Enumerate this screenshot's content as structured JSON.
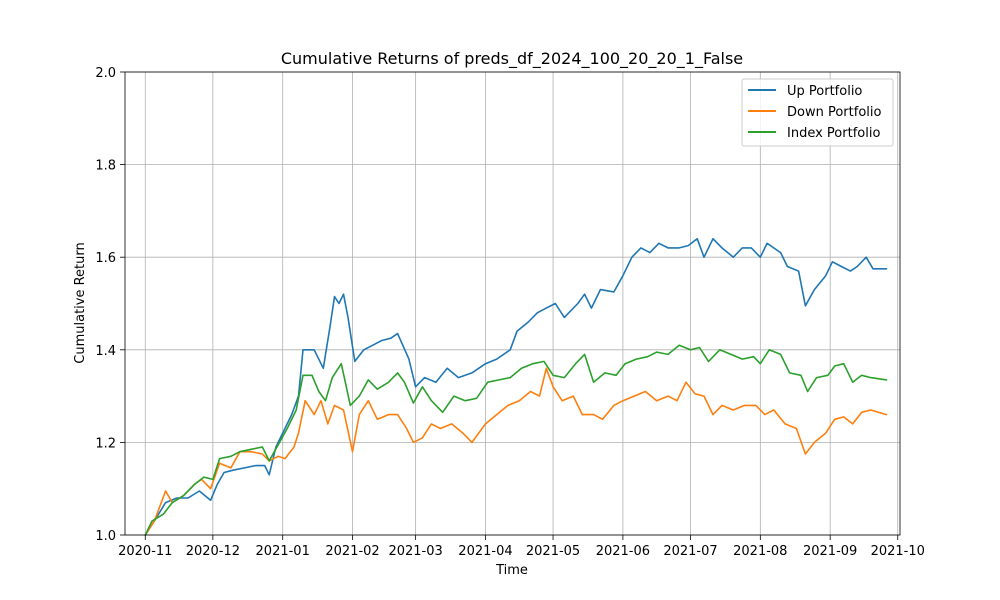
{
  "chart_data": {
    "type": "line",
    "title": "Cumulative Returns of preds_df_2024_100_20_20_1_False",
    "xlabel": "Time",
    "ylabel": "Cumulative Return",
    "ylim": [
      1.0,
      2.0
    ],
    "xlim": [
      "2020-10-23",
      "2021-10-02"
    ],
    "grid": true,
    "legend_position": "top-right",
    "x_ticks": [
      "2020-11",
      "2020-12",
      "2021-01",
      "2021-02",
      "2021-03",
      "2021-04",
      "2021-05",
      "2021-06",
      "2021-07",
      "2021-08",
      "2021-09",
      "2021-10"
    ],
    "y_ticks": [
      "1.0",
      "1.2",
      "1.4",
      "1.6",
      "1.8",
      "2.0"
    ],
    "series": [
      {
        "name": "Up Portfolio",
        "color": "#1f77b4",
        "points": [
          [
            "2020-11-01",
            1.0
          ],
          [
            "2020-11-05",
            1.03
          ],
          [
            "2020-11-10",
            1.07
          ],
          [
            "2020-11-15",
            1.08
          ],
          [
            "2020-11-20",
            1.08
          ],
          [
            "2020-11-25",
            1.095
          ],
          [
            "2020-11-30",
            1.075
          ],
          [
            "2020-12-03",
            1.11
          ],
          [
            "2020-12-06",
            1.135
          ],
          [
            "2020-12-10",
            1.14
          ],
          [
            "2020-12-15",
            1.145
          ],
          [
            "2020-12-20",
            1.15
          ],
          [
            "2020-12-24",
            1.15
          ],
          [
            "2020-12-26",
            1.13
          ],
          [
            "2020-12-29",
            1.19
          ],
          [
            "2021-01-01",
            1.22
          ],
          [
            "2021-01-05",
            1.26
          ],
          [
            "2021-01-08",
            1.3
          ],
          [
            "2021-01-10",
            1.4
          ],
          [
            "2021-01-15",
            1.4
          ],
          [
            "2021-01-19",
            1.36
          ],
          [
            "2021-01-22",
            1.45
          ],
          [
            "2021-01-24",
            1.515
          ],
          [
            "2021-01-26",
            1.5
          ],
          [
            "2021-01-28",
            1.52
          ],
          [
            "2021-01-30",
            1.47
          ],
          [
            "2021-02-02",
            1.375
          ],
          [
            "2021-02-06",
            1.4
          ],
          [
            "2021-02-10",
            1.41
          ],
          [
            "2021-02-14",
            1.42
          ],
          [
            "2021-02-18",
            1.425
          ],
          [
            "2021-02-21",
            1.435
          ],
          [
            "2021-02-26",
            1.38
          ],
          [
            "2021-03-01",
            1.32
          ],
          [
            "2021-03-05",
            1.34
          ],
          [
            "2021-03-10",
            1.33
          ],
          [
            "2021-03-15",
            1.36
          ],
          [
            "2021-03-20",
            1.34
          ],
          [
            "2021-03-26",
            1.35
          ],
          [
            "2021-04-01",
            1.37
          ],
          [
            "2021-04-06",
            1.38
          ],
          [
            "2021-04-12",
            1.4
          ],
          [
            "2021-04-15",
            1.44
          ],
          [
            "2021-04-20",
            1.46
          ],
          [
            "2021-04-24",
            1.48
          ],
          [
            "2021-04-28",
            1.49
          ],
          [
            "2021-05-02",
            1.5
          ],
          [
            "2021-05-06",
            1.47
          ],
          [
            "2021-05-12",
            1.5
          ],
          [
            "2021-05-15",
            1.52
          ],
          [
            "2021-05-18",
            1.49
          ],
          [
            "2021-05-22",
            1.53
          ],
          [
            "2021-05-28",
            1.525
          ],
          [
            "2021-06-01",
            1.56
          ],
          [
            "2021-06-05",
            1.6
          ],
          [
            "2021-06-09",
            1.62
          ],
          [
            "2021-06-13",
            1.61
          ],
          [
            "2021-06-17",
            1.63
          ],
          [
            "2021-06-21",
            1.62
          ],
          [
            "2021-06-26",
            1.62
          ],
          [
            "2021-06-30",
            1.625
          ],
          [
            "2021-07-04",
            1.64
          ],
          [
            "2021-07-07",
            1.6
          ],
          [
            "2021-07-11",
            1.64
          ],
          [
            "2021-07-15",
            1.62
          ],
          [
            "2021-07-20",
            1.6
          ],
          [
            "2021-07-24",
            1.62
          ],
          [
            "2021-07-28",
            1.62
          ],
          [
            "2021-08-01",
            1.6
          ],
          [
            "2021-08-04",
            1.63
          ],
          [
            "2021-08-10",
            1.61
          ],
          [
            "2021-08-13",
            1.58
          ],
          [
            "2021-08-18",
            1.57
          ],
          [
            "2021-08-21",
            1.495
          ],
          [
            "2021-08-25",
            1.53
          ],
          [
            "2021-08-30",
            1.56
          ],
          [
            "2021-09-02",
            1.59
          ],
          [
            "2021-09-06",
            1.58
          ],
          [
            "2021-09-10",
            1.57
          ],
          [
            "2021-09-13",
            1.58
          ],
          [
            "2021-09-17",
            1.6
          ],
          [
            "2021-09-20",
            1.575
          ],
          [
            "2021-09-26",
            1.575
          ]
        ]
      },
      {
        "name": "Down Portfolio",
        "color": "#ff7f0e",
        "points": [
          [
            "2020-11-01",
            1.0
          ],
          [
            "2020-11-05",
            1.03
          ],
          [
            "2020-11-10",
            1.095
          ],
          [
            "2020-11-13",
            1.07
          ],
          [
            "2020-11-18",
            1.085
          ],
          [
            "2020-11-23",
            1.11
          ],
          [
            "2020-11-26",
            1.12
          ],
          [
            "2020-11-30",
            1.1
          ],
          [
            "2020-12-04",
            1.155
          ],
          [
            "2020-12-09",
            1.145
          ],
          [
            "2020-12-13",
            1.18
          ],
          [
            "2020-12-18",
            1.18
          ],
          [
            "2020-12-23",
            1.175
          ],
          [
            "2020-12-26",
            1.16
          ],
          [
            "2020-12-30",
            1.17
          ],
          [
            "2021-01-02",
            1.165
          ],
          [
            "2021-01-06",
            1.19
          ],
          [
            "2021-01-08",
            1.22
          ],
          [
            "2021-01-11",
            1.29
          ],
          [
            "2021-01-15",
            1.26
          ],
          [
            "2021-01-18",
            1.29
          ],
          [
            "2021-01-21",
            1.24
          ],
          [
            "2021-01-24",
            1.28
          ],
          [
            "2021-01-28",
            1.27
          ],
          [
            "2021-02-01",
            1.18
          ],
          [
            "2021-02-04",
            1.26
          ],
          [
            "2021-02-08",
            1.29
          ],
          [
            "2021-02-12",
            1.25
          ],
          [
            "2021-02-17",
            1.26
          ],
          [
            "2021-02-21",
            1.26
          ],
          [
            "2021-02-25",
            1.23
          ],
          [
            "2021-02-28",
            1.2
          ],
          [
            "2021-03-04",
            1.21
          ],
          [
            "2021-03-08",
            1.24
          ],
          [
            "2021-03-12",
            1.23
          ],
          [
            "2021-03-17",
            1.24
          ],
          [
            "2021-03-22",
            1.22
          ],
          [
            "2021-03-26",
            1.2
          ],
          [
            "2021-04-01",
            1.24
          ],
          [
            "2021-04-06",
            1.26
          ],
          [
            "2021-04-11",
            1.28
          ],
          [
            "2021-04-16",
            1.29
          ],
          [
            "2021-04-21",
            1.31
          ],
          [
            "2021-04-25",
            1.3
          ],
          [
            "2021-04-28",
            1.36
          ],
          [
            "2021-05-01",
            1.32
          ],
          [
            "2021-05-05",
            1.29
          ],
          [
            "2021-05-10",
            1.3
          ],
          [
            "2021-05-14",
            1.26
          ],
          [
            "2021-05-19",
            1.26
          ],
          [
            "2021-05-23",
            1.25
          ],
          [
            "2021-05-28",
            1.28
          ],
          [
            "2021-06-01",
            1.29
          ],
          [
            "2021-06-06",
            1.3
          ],
          [
            "2021-06-11",
            1.31
          ],
          [
            "2021-06-16",
            1.29
          ],
          [
            "2021-06-21",
            1.3
          ],
          [
            "2021-06-25",
            1.29
          ],
          [
            "2021-06-29",
            1.33
          ],
          [
            "2021-07-03",
            1.305
          ],
          [
            "2021-07-07",
            1.3
          ],
          [
            "2021-07-11",
            1.26
          ],
          [
            "2021-07-15",
            1.28
          ],
          [
            "2021-07-20",
            1.27
          ],
          [
            "2021-07-25",
            1.28
          ],
          [
            "2021-07-30",
            1.28
          ],
          [
            "2021-08-03",
            1.26
          ],
          [
            "2021-08-07",
            1.27
          ],
          [
            "2021-08-12",
            1.24
          ],
          [
            "2021-08-17",
            1.23
          ],
          [
            "2021-08-21",
            1.175
          ],
          [
            "2021-08-25",
            1.2
          ],
          [
            "2021-08-30",
            1.22
          ],
          [
            "2021-09-03",
            1.25
          ],
          [
            "2021-09-07",
            1.255
          ],
          [
            "2021-09-11",
            1.24
          ],
          [
            "2021-09-15",
            1.265
          ],
          [
            "2021-09-19",
            1.27
          ],
          [
            "2021-09-26",
            1.26
          ]
        ]
      },
      {
        "name": "Index Portfolio",
        "color": "#2ca02c",
        "points": [
          [
            "2020-11-01",
            1.0
          ],
          [
            "2020-11-04",
            1.03
          ],
          [
            "2020-11-09",
            1.045
          ],
          [
            "2020-11-13",
            1.07
          ],
          [
            "2020-11-18",
            1.085
          ],
          [
            "2020-11-23",
            1.11
          ],
          [
            "2020-11-27",
            1.125
          ],
          [
            "2020-12-01",
            1.12
          ],
          [
            "2020-12-04",
            1.165
          ],
          [
            "2020-12-09",
            1.17
          ],
          [
            "2020-12-13",
            1.18
          ],
          [
            "2020-12-18",
            1.185
          ],
          [
            "2020-12-23",
            1.19
          ],
          [
            "2020-12-26",
            1.16
          ],
          [
            "2020-12-30",
            1.195
          ],
          [
            "2021-01-03",
            1.23
          ],
          [
            "2021-01-07",
            1.27
          ],
          [
            "2021-01-10",
            1.345
          ],
          [
            "2021-01-14",
            1.345
          ],
          [
            "2021-01-17",
            1.31
          ],
          [
            "2021-01-20",
            1.29
          ],
          [
            "2021-01-23",
            1.34
          ],
          [
            "2021-01-27",
            1.37
          ],
          [
            "2021-01-31",
            1.28
          ],
          [
            "2021-02-04",
            1.3
          ],
          [
            "2021-02-08",
            1.335
          ],
          [
            "2021-02-12",
            1.315
          ],
          [
            "2021-02-17",
            1.33
          ],
          [
            "2021-02-21",
            1.35
          ],
          [
            "2021-02-24",
            1.33
          ],
          [
            "2021-02-28",
            1.285
          ],
          [
            "2021-03-04",
            1.32
          ],
          [
            "2021-03-08",
            1.29
          ],
          [
            "2021-03-13",
            1.265
          ],
          [
            "2021-03-18",
            1.3
          ],
          [
            "2021-03-23",
            1.29
          ],
          [
            "2021-03-28",
            1.295
          ],
          [
            "2021-04-02",
            1.33
          ],
          [
            "2021-04-07",
            1.335
          ],
          [
            "2021-04-12",
            1.34
          ],
          [
            "2021-04-17",
            1.36
          ],
          [
            "2021-04-22",
            1.37
          ],
          [
            "2021-04-27",
            1.375
          ],
          [
            "2021-05-01",
            1.345
          ],
          [
            "2021-05-06",
            1.34
          ],
          [
            "2021-05-11",
            1.37
          ],
          [
            "2021-05-15",
            1.39
          ],
          [
            "2021-05-19",
            1.33
          ],
          [
            "2021-05-24",
            1.35
          ],
          [
            "2021-05-29",
            1.345
          ],
          [
            "2021-06-02",
            1.37
          ],
          [
            "2021-06-07",
            1.38
          ],
          [
            "2021-06-12",
            1.385
          ],
          [
            "2021-06-16",
            1.395
          ],
          [
            "2021-06-21",
            1.39
          ],
          [
            "2021-06-26",
            1.41
          ],
          [
            "2021-07-01",
            1.4
          ],
          [
            "2021-07-05",
            1.405
          ],
          [
            "2021-07-09",
            1.375
          ],
          [
            "2021-07-14",
            1.4
          ],
          [
            "2021-07-19",
            1.39
          ],
          [
            "2021-07-24",
            1.38
          ],
          [
            "2021-07-29",
            1.385
          ],
          [
            "2021-08-01",
            1.37
          ],
          [
            "2021-08-05",
            1.4
          ],
          [
            "2021-08-10",
            1.39
          ],
          [
            "2021-08-14",
            1.35
          ],
          [
            "2021-08-19",
            1.345
          ],
          [
            "2021-08-22",
            1.31
          ],
          [
            "2021-08-26",
            1.34
          ],
          [
            "2021-08-31",
            1.345
          ],
          [
            "2021-09-03",
            1.365
          ],
          [
            "2021-09-07",
            1.37
          ],
          [
            "2021-09-11",
            1.33
          ],
          [
            "2021-09-15",
            1.345
          ],
          [
            "2021-09-19",
            1.34
          ],
          [
            "2021-09-26",
            1.335
          ]
        ]
      }
    ]
  }
}
